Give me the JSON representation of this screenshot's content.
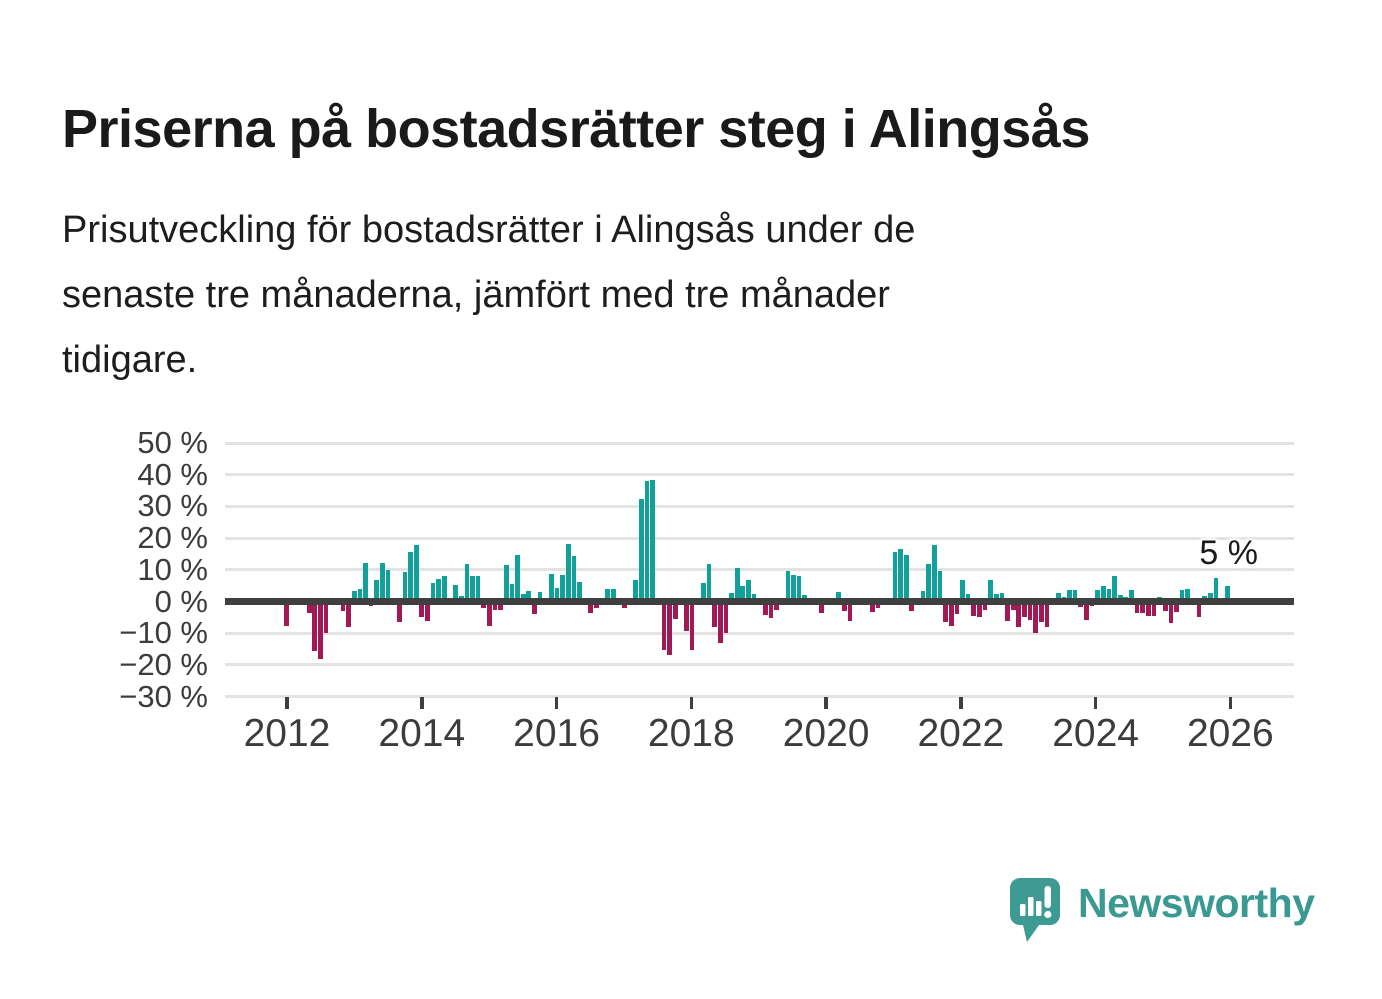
{
  "page": {
    "title": "Priserna på bostadsrätter steg i Alingsås",
    "subtitle_lines": [
      "Prisutveckling för bostadsrätter i Alingsås under de",
      "senaste tre månaderna, jämfört med tre månader",
      "tidigare."
    ]
  },
  "branding": {
    "logo_text": "Newsworthy",
    "logo_color": "#3d9b93",
    "logo_text_color": "#3a9a91"
  },
  "chart_data": {
    "type": "bar",
    "title": "Priserna på bostadsrätter steg i Alingsås",
    "xlabel": "",
    "ylabel": "",
    "unit": "%",
    "frequency": "monthly",
    "x_start": "2012-01",
    "x_end": "2025-12",
    "x_ticks": [
      "2012",
      "2014",
      "2016",
      "2018",
      "2020",
      "2022",
      "2024",
      "2026"
    ],
    "y_ticks": [
      50,
      40,
      30,
      20,
      10,
      0,
      -10,
      -20,
      -30
    ],
    "y_tick_labels": [
      "50 %",
      "40 %",
      "30 %",
      "20 %",
      "10 %",
      "0 %",
      "−10 %",
      "−20 %",
      "−30 %"
    ],
    "ylim": [
      -30,
      50
    ],
    "grid": "horizontal",
    "legend": "none",
    "annotation_latest": "5 %",
    "latest_value": 5.0,
    "colors": {
      "positive": "#12a19a",
      "negative": "#a11a55",
      "axis": "#3f3f3f",
      "grid": "#e3e3e3",
      "text": "#1a1a1a"
    },
    "series_by_year": {
      "2012": [
        -7.7,
        0,
        0,
        0,
        -3.5,
        -15.5,
        -18.2,
        -9.8,
        0,
        1.0,
        -3.0,
        -8.2
      ],
      "2013": [
        3.4,
        3.9,
        12.3,
        -1.4,
        6.8,
        12.3,
        9.9,
        0.9,
        -6.6,
        9.2,
        15.5,
        17.8
      ],
      "2014": [
        -5.0,
        -6.1,
        5.8,
        7.0,
        8.1,
        0,
        5.2,
        1.8,
        11.8,
        8.1,
        8.1,
        -1.9
      ],
      "2015": [
        -7.7,
        -2.6,
        -2.6,
        11.5,
        5.5,
        14.6,
        2.3,
        3.4,
        -4.0,
        3.1,
        0.9,
        8.6
      ],
      "2016": [
        4.2,
        8.3,
        18.1,
        14.4,
        6.2,
        0,
        -3.5,
        -2.2,
        0,
        4.1,
        4.1,
        0
      ],
      "2017": [
        -2.2,
        0,
        6.8,
        32.5,
        38.0,
        38.5,
        0,
        -15.3,
        -16.9,
        -5.4,
        0,
        -9.3
      ],
      "2018": [
        -15.3,
        0,
        5.8,
        11.8,
        -8.2,
        -13.2,
        -9.8,
        2.6,
        10.7,
        4.9,
        6.8,
        2.3
      ],
      "2019": [
        0,
        -4.3,
        -5.1,
        -2.6,
        0,
        9.7,
        8.3,
        7.9,
        2.0,
        0.9,
        0,
        -3.5
      ],
      "2020": [
        0,
        0,
        3.1,
        -3.0,
        -6.0,
        0,
        0,
        0,
        -3.3,
        -2.0,
        0,
        0
      ],
      "2021": [
        15.7,
        16.7,
        14.6,
        -3.0,
        0,
        3.4,
        11.8,
        17.8,
        9.7,
        -6.6,
        -7.8,
        -3.8
      ],
      "2022": [
        6.8,
        2.4,
        -4.5,
        -4.9,
        -2.6,
        6.8,
        2.4,
        2.8,
        -6.3,
        -2.6,
        -8.1,
        -4.9
      ],
      "2023": [
        -5.8,
        -9.8,
        -6.6,
        -8.1,
        0,
        2.6,
        1.4,
        3.7,
        3.7,
        -1.8,
        -5.8,
        -1.4
      ],
      "2024": [
        3.7,
        4.9,
        4.1,
        7.9,
        2.0,
        1.3,
        3.7,
        -3.7,
        -3.7,
        -4.5,
        -4.7,
        1.3
      ],
      "2025": [
        -2.9,
        -6.8,
        -3.4,
        3.7,
        3.8,
        -1.0,
        -5.0,
        1.8,
        2.8,
        7.3,
        0,
        5.0
      ]
    }
  }
}
